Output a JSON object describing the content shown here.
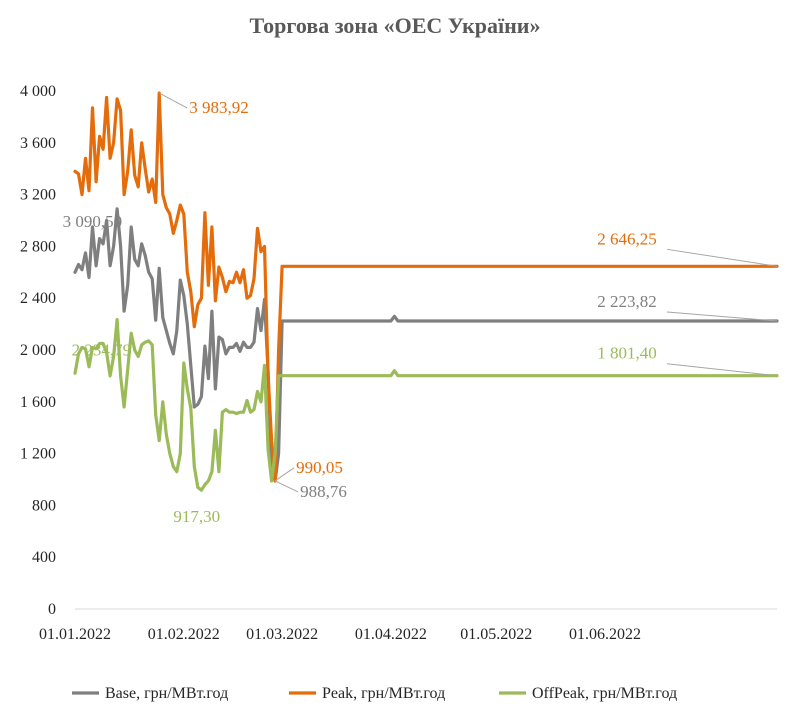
{
  "chart_data": {
    "type": "line",
    "title": "Торгова зона «ОЕС України»",
    "xlabel": "",
    "ylabel": "",
    "ylim": [
      0,
      4000
    ],
    "y_ticks": [
      0,
      400,
      800,
      1200,
      1600,
      2000,
      2400,
      2800,
      3200,
      3600,
      4000
    ],
    "y_tick_labels": [
      "0",
      "400",
      "800",
      "1 200",
      "1 600",
      "2 000",
      "2 400",
      "2 800",
      "3 200",
      "3 600",
      "4 000"
    ],
    "x_range": [
      "2022-01-01",
      "2022-07-20"
    ],
    "x_ticks": [
      "2022-01-01",
      "2022-02-01",
      "2022-03-01",
      "2022-04-01",
      "2022-05-01",
      "2022-06-01"
    ],
    "x_tick_labels": [
      "01.01.2022",
      "01.02.2022",
      "01.03.2022",
      "01.04.2022",
      "01.05.2022",
      "01.06.2022"
    ],
    "grid": false,
    "legend_position": "bottom",
    "series": [
      {
        "name": "Base, грн/МВт.год",
        "color": "#7f7f7f",
        "x": [
          "2022-01-01",
          "2022-01-02",
          "2022-01-03",
          "2022-01-04",
          "2022-01-05",
          "2022-01-06",
          "2022-01-07",
          "2022-01-08",
          "2022-01-09",
          "2022-01-10",
          "2022-01-11",
          "2022-01-12",
          "2022-01-13",
          "2022-01-14",
          "2022-01-15",
          "2022-01-16",
          "2022-01-17",
          "2022-01-18",
          "2022-01-19",
          "2022-01-20",
          "2022-01-21",
          "2022-01-22",
          "2022-01-23",
          "2022-01-24",
          "2022-01-25",
          "2022-01-26",
          "2022-01-27",
          "2022-01-28",
          "2022-01-29",
          "2022-01-30",
          "2022-01-31",
          "2022-02-01",
          "2022-02-02",
          "2022-02-03",
          "2022-02-04",
          "2022-02-05",
          "2022-02-06",
          "2022-02-07",
          "2022-02-08",
          "2022-02-09",
          "2022-02-10",
          "2022-02-11",
          "2022-02-12",
          "2022-02-13",
          "2022-02-14",
          "2022-02-15",
          "2022-02-16",
          "2022-02-17",
          "2022-02-18",
          "2022-02-19",
          "2022-02-20",
          "2022-02-21",
          "2022-02-22",
          "2022-02-23",
          "2022-02-24",
          "2022-02-25",
          "2022-02-26",
          "2022-02-27",
          "2022-02-28",
          "2022-03-01",
          "2022-03-05",
          "2022-04-01",
          "2022-04-02",
          "2022-04-03",
          "2022-07-20"
        ],
        "values": [
          2600,
          2660,
          2620,
          2750,
          2560,
          2950,
          2650,
          2860,
          2820,
          3000,
          2650,
          2800,
          3090,
          2800,
          2300,
          2500,
          2950,
          2700,
          2650,
          2820,
          2730,
          2600,
          2550,
          2230,
          2630,
          2250,
          2150,
          2050,
          1970,
          2150,
          2540,
          2420,
          2200,
          1880,
          1560,
          1580,
          1640,
          2030,
          1780,
          2300,
          1700,
          2100,
          2080,
          1970,
          2020,
          2020,
          2050,
          1990,
          2060,
          2020,
          2020,
          2060,
          2320,
          2150,
          2390,
          1830,
          1100,
          988.76,
          1200,
          2223.82,
          2223.82,
          2223.82,
          2260,
          2223.82,
          2223.82
        ]
      },
      {
        "name": "Peak, грн/МВт.год",
        "color": "#e46c0a",
        "x": [
          "2022-01-01",
          "2022-01-02",
          "2022-01-03",
          "2022-01-04",
          "2022-01-05",
          "2022-01-06",
          "2022-01-07",
          "2022-01-08",
          "2022-01-09",
          "2022-01-10",
          "2022-01-11",
          "2022-01-12",
          "2022-01-13",
          "2022-01-14",
          "2022-01-15",
          "2022-01-16",
          "2022-01-17",
          "2022-01-18",
          "2022-01-19",
          "2022-01-20",
          "2022-01-21",
          "2022-01-22",
          "2022-01-23",
          "2022-01-24",
          "2022-01-25",
          "2022-01-26",
          "2022-01-27",
          "2022-01-28",
          "2022-01-29",
          "2022-01-30",
          "2022-01-31",
          "2022-02-01",
          "2022-02-02",
          "2022-02-03",
          "2022-02-04",
          "2022-02-05",
          "2022-02-06",
          "2022-02-07",
          "2022-02-08",
          "2022-02-09",
          "2022-02-10",
          "2022-02-11",
          "2022-02-12",
          "2022-02-13",
          "2022-02-14",
          "2022-02-15",
          "2022-02-16",
          "2022-02-17",
          "2022-02-18",
          "2022-02-19",
          "2022-02-20",
          "2022-02-21",
          "2022-02-22",
          "2022-02-23",
          "2022-02-24",
          "2022-02-25",
          "2022-02-26",
          "2022-02-27",
          "2022-02-28",
          "2022-03-01",
          "2022-07-20"
        ],
        "values": [
          3380,
          3360,
          3200,
          3480,
          3230,
          3870,
          3300,
          3650,
          3550,
          3950,
          3480,
          3600,
          3940,
          3850,
          3200,
          3380,
          3700,
          3350,
          3260,
          3600,
          3400,
          3220,
          3320,
          3140,
          3983.92,
          3200,
          3100,
          3050,
          2900,
          3000,
          3120,
          3050,
          2600,
          2450,
          2180,
          2350,
          2400,
          3060,
          2500,
          2950,
          2380,
          2640,
          2560,
          2450,
          2530,
          2520,
          2600,
          2520,
          2620,
          2400,
          2420,
          2550,
          2940,
          2760,
          2800,
          1800,
          1300,
          990.05,
          2000,
          2646.25,
          2646.25
        ]
      },
      {
        "name": "OffPeak, грн/МВт.год",
        "color": "#9bbb59",
        "x": [
          "2022-01-01",
          "2022-01-02",
          "2022-01-03",
          "2022-01-04",
          "2022-01-05",
          "2022-01-06",
          "2022-01-07",
          "2022-01-08",
          "2022-01-09",
          "2022-01-10",
          "2022-01-11",
          "2022-01-12",
          "2022-01-13",
          "2022-01-14",
          "2022-01-15",
          "2022-01-16",
          "2022-01-17",
          "2022-01-18",
          "2022-01-19",
          "2022-01-20",
          "2022-01-21",
          "2022-01-22",
          "2022-01-23",
          "2022-01-24",
          "2022-01-25",
          "2022-01-26",
          "2022-01-27",
          "2022-01-28",
          "2022-01-29",
          "2022-01-30",
          "2022-01-31",
          "2022-02-01",
          "2022-02-02",
          "2022-02-03",
          "2022-02-04",
          "2022-02-05",
          "2022-02-06",
          "2022-02-07",
          "2022-02-08",
          "2022-02-09",
          "2022-02-10",
          "2022-02-11",
          "2022-02-12",
          "2022-02-13",
          "2022-02-14",
          "2022-02-15",
          "2022-02-16",
          "2022-02-17",
          "2022-02-18",
          "2022-02-19",
          "2022-02-20",
          "2022-02-21",
          "2022-02-22",
          "2022-02-23",
          "2022-02-24",
          "2022-02-25",
          "2022-02-26",
          "2022-02-27",
          "2022-02-28",
          "2022-03-01",
          "2022-04-01",
          "2022-04-02",
          "2022-04-03",
          "2022-07-20"
        ],
        "values": [
          1820,
          1970,
          2020,
          2010,
          1870,
          2020,
          2010,
          2050,
          2050,
          1980,
          1800,
          1950,
          2234.79,
          1800,
          1560,
          1850,
          2130,
          2000,
          1950,
          2040,
          2060,
          2070,
          2040,
          1500,
          1300,
          1600,
          1350,
          1200,
          1100,
          1060,
          1200,
          1900,
          1700,
          1550,
          1100,
          940,
          917.3,
          960,
          990,
          1060,
          1380,
          1060,
          1520,
          1540,
          1520,
          1520,
          1510,
          1520,
          1520,
          1610,
          1520,
          1540,
          1680,
          1600,
          1880,
          1230,
          988.76,
          1200,
          1801.4,
          1801.4,
          1801.4,
          1840,
          1801.4,
          1801.4
        ]
      }
    ],
    "annotations": [
      {
        "text": "3 983,92",
        "series": 1,
        "x": "2022-01-25",
        "value": 3983.92
      },
      {
        "text": "3 090,50",
        "series": 0,
        "x": "2022-01-13",
        "value": 3090.5
      },
      {
        "text": "2 234,79",
        "series": 2,
        "x": "2022-01-13",
        "value": 2234.79
      },
      {
        "text": "2 646,25",
        "series": 1,
        "x": "2022-07-20",
        "value": 2646.25
      },
      {
        "text": "2 223,82",
        "series": 0,
        "x": "2022-07-20",
        "value": 2223.82
      },
      {
        "text": "1 801,40",
        "series": 2,
        "x": "2022-07-20",
        "value": 1801.4
      },
      {
        "text": "990,05",
        "series": 1,
        "x": "2022-02-27",
        "value": 990.05
      },
      {
        "text": "988,76",
        "series": 0,
        "x": "2022-02-27",
        "value": 988.76
      },
      {
        "text": "917,30",
        "series": 2,
        "x": "2022-02-06",
        "value": 917.3
      }
    ]
  }
}
